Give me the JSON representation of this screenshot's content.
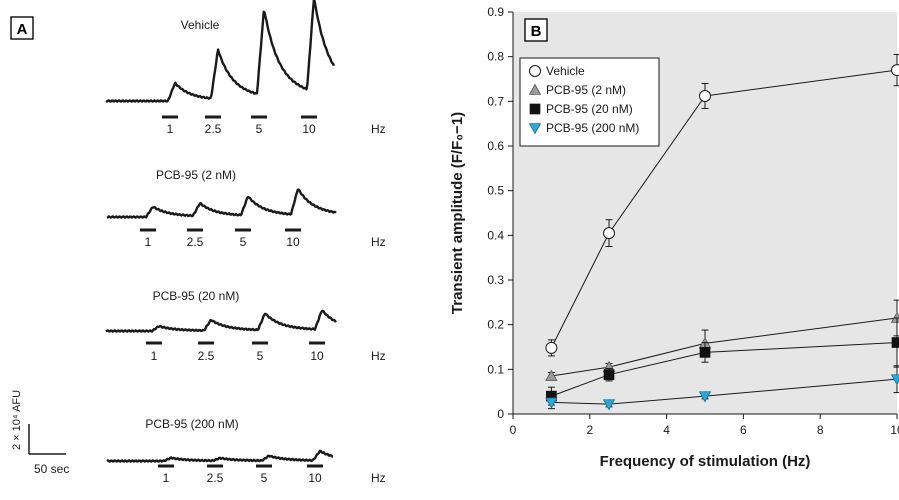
{
  "panel_a": {
    "letter": "A",
    "hz_label": "Hz",
    "traces": [
      {
        "label": "Vehicle",
        "freqs": [
          "1",
          "2.5",
          "5",
          "10"
        ],
        "rel_amp": [
          0.148,
          0.405,
          0.712,
          0.77
        ]
      },
      {
        "label": "PCB-95 (2 nM)",
        "freqs": [
          "1",
          "2.5",
          "5",
          "10"
        ],
        "rel_amp": [
          0.085,
          0.105,
          0.158,
          0.215
        ]
      },
      {
        "label": "PCB-95 (20 nM)",
        "freqs": [
          "1",
          "2.5",
          "5",
          "10"
        ],
        "rel_amp": [
          0.04,
          0.088,
          0.138,
          0.16
        ]
      },
      {
        "label": "PCB-95 (200 nM)",
        "freqs": [
          "1",
          "2.5",
          "5",
          "10"
        ],
        "rel_amp": [
          0.026,
          0.022,
          0.04,
          0.078
        ]
      }
    ],
    "scale_bar": {
      "vertical_label": "2 × 10⁴ AFU",
      "horizontal_label": "50 sec"
    }
  },
  "chart_data": {
    "panel": "B",
    "type": "line",
    "title": "",
    "xlabel": "Frequency of stimulation (Hz)",
    "ylabel": "Transient amplitude (F/F₀−1)",
    "xlim": [
      0,
      10
    ],
    "ylim": [
      0,
      0.9
    ],
    "xticks": [
      0,
      2,
      4,
      6,
      8,
      10
    ],
    "yticks": [
      0,
      0.1,
      0.2,
      0.3,
      0.4,
      0.5,
      0.6,
      0.7,
      0.8,
      0.9
    ],
    "grid": false,
    "legend_position": "top-left",
    "x": [
      1,
      2.5,
      5,
      10
    ],
    "series": [
      {
        "name": "Vehicle",
        "marker": "circle-open",
        "color": "#ffffff",
        "values": [
          0.148,
          0.405,
          0.712,
          0.77
        ],
        "errors": [
          0.018,
          0.03,
          0.028,
          0.035
        ]
      },
      {
        "name": "PCB-95 (2 nM)",
        "marker": "triangle-up",
        "color": "#9a9a9a",
        "values": [
          0.085,
          0.105,
          0.158,
          0.215
        ],
        "errors": [
          0.008,
          0.008,
          0.03,
          0.04
        ]
      },
      {
        "name": "PCB-95 (20 nM)",
        "marker": "square",
        "color": "#111111",
        "values": [
          0.04,
          0.088,
          0.138,
          0.16
        ],
        "errors": [
          0.02,
          0.014,
          0.022,
          0.055
        ]
      },
      {
        "name": "PCB-95 (200 nM)",
        "marker": "triangle-down",
        "color": "#2aa8d8",
        "values": [
          0.026,
          0.022,
          0.04,
          0.078
        ],
        "errors": [
          0.014,
          0.006,
          0.006,
          0.03
        ]
      }
    ]
  }
}
